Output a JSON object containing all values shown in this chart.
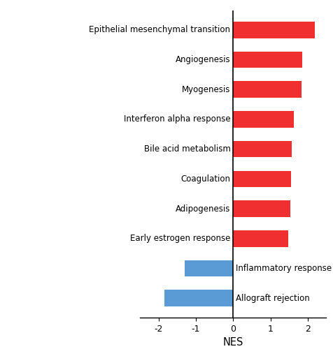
{
  "categories": [
    "Epithelial mesenchymal transition",
    "Angiogenesis",
    "Myogenesis",
    "Interferon alpha response",
    "Bile acid metabolism",
    "Coagulation",
    "Adipogenesis",
    "Early estrogen response",
    "Inflammatory response",
    "Allograft rejection"
  ],
  "nes_values": [
    2.2,
    1.85,
    1.83,
    1.62,
    1.57,
    1.56,
    1.54,
    1.48,
    -1.3,
    -1.85
  ],
  "bar_colors": [
    "#f03030",
    "#f03030",
    "#f03030",
    "#f03030",
    "#f03030",
    "#f03030",
    "#f03030",
    "#f03030",
    "#5b9bd5",
    "#5b9bd5"
  ],
  "xlabel": "NES",
  "xlim": [
    -2.5,
    2.5
  ],
  "xticks": [
    -2,
    -1,
    0,
    1,
    2
  ],
  "background_color": "#ffffff",
  "bar_height": 0.55,
  "label_fontsize": 8.5,
  "tick_fontsize": 9.0,
  "xlabel_fontsize": 10.5
}
